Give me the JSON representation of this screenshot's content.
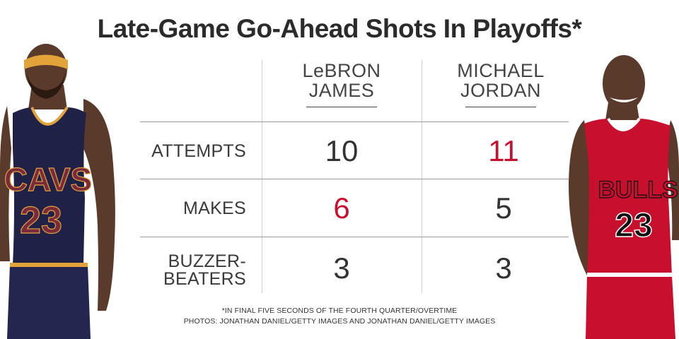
{
  "title": "Late-Game Go-Ahead Shots In Playoffs*",
  "columns": [
    {
      "line1": "LeBRON",
      "line2": "JAMES"
    },
    {
      "line1": "MICHAEL",
      "line2": "JORDAN"
    }
  ],
  "rows": [
    {
      "label": [
        "ATTEMPTS"
      ],
      "values": [
        "10",
        "11"
      ],
      "highlight": 1
    },
    {
      "label": [
        "MAKES"
      ],
      "values": [
        "6",
        "5"
      ],
      "highlight": 0
    },
    {
      "label": [
        "BUZZER-",
        "BEATERS"
      ],
      "values": [
        "3",
        "3"
      ],
      "highlight": -1
    }
  ],
  "footnotes": {
    "line1": "*IN FINAL FIVE SECONDS OF THE FOURTH QUARTER/OVERTIME",
    "line2": "PHOTOS: JONATHAN DANIEL/GETTY IMAGES AND JONATHAN DANIEL/GETTY IMAGES"
  },
  "colors": {
    "highlight": "#c8102e",
    "text": "#333333",
    "cavs_navy": "#1f2147",
    "cavs_gold": "#e3a33b",
    "cavs_wine": "#7a2a3a",
    "bulls_red": "#c8102e"
  },
  "images": {
    "left_player": "lebron-james-photo",
    "right_player": "michael-jordan-photo"
  },
  "player_jerseys": {
    "left": {
      "team": "CAVS",
      "number": "23"
    },
    "right": {
      "team": "BULLS",
      "number": "23"
    }
  },
  "chart_data": {
    "type": "table",
    "title": "Late-Game Go-Ahead Shots In Playoffs*",
    "columns": [
      "LeBRON JAMES",
      "MICHAEL JORDAN"
    ],
    "rows": [
      {
        "label": "ATTEMPTS",
        "values": [
          10,
          11
        ]
      },
      {
        "label": "MAKES",
        "values": [
          6,
          5
        ]
      },
      {
        "label": "BUZZER-BEATERS",
        "values": [
          3,
          3
        ]
      }
    ]
  }
}
